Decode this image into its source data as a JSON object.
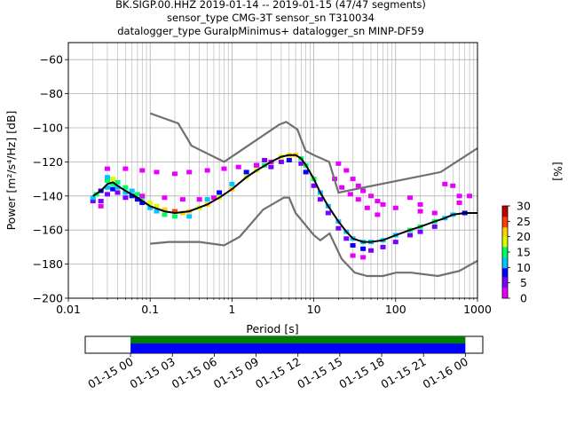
{
  "title_lines": [
    "BK.SIGP.00.HHZ   2019-01-14 -- 2019-01-15  (47/47 segments)",
    "sensor_type CMG-3T sensor_sn T310034",
    "datalogger_type GuralpMinimus+ datalogger_sn MINP-DF59"
  ],
  "chart_data": [
    {
      "type": "heatmap",
      "title": "BK.SIGP.00.HHZ   2019-01-14 -- 2019-01-15  (47/47 segments)",
      "xlabel": "Period [s]",
      "ylabel": "Power [m²/s⁴/Hz] [dB]",
      "xscale": "log",
      "xlim": [
        0.01,
        1000
      ],
      "ylim": [
        -200,
        -50
      ],
      "xticks": [
        0.01,
        0.1,
        1,
        10,
        100,
        1000
      ],
      "xtick_labels": [
        "0.01",
        "0.1",
        "1",
        "10",
        "100",
        "1000"
      ],
      "yticks": [
        -200,
        -180,
        -160,
        -140,
        -120,
        -100,
        -80,
        -60
      ],
      "ytick_labels": [
        "−200",
        "−180",
        "−160",
        "−140",
        "−120",
        "−100",
        "−80",
        "−60"
      ],
      "grid": true,
      "colormap": [
        "#ffffff",
        "#e800ff",
        "#7a00ff",
        "#0000ff",
        "#00c8ff",
        "#00ff64",
        "#d8ff00",
        "#ffd000",
        "#ff4000",
        "#c00000"
      ],
      "colorbar": {
        "label": "[%]",
        "range": [
          0,
          30
        ],
        "ticks": [
          0,
          5,
          10,
          15,
          20,
          25,
          30
        ],
        "tick_labels": [
          "0",
          "5",
          "10",
          "15",
          "20",
          "25",
          "30"
        ]
      },
      "mode_curve": {
        "name": "mode",
        "color": "#000000",
        "x": [
          0.02,
          0.025,
          0.03,
          0.035,
          0.04,
          0.05,
          0.07,
          0.1,
          0.15,
          0.2,
          0.3,
          0.5,
          0.7,
          1,
          1.5,
          2,
          3,
          4,
          5,
          6,
          7,
          8,
          10,
          12,
          15,
          20,
          25,
          30,
          40,
          50,
          70,
          100,
          150,
          200,
          300,
          400,
          500,
          700,
          1000
        ],
        "y": [
          -140,
          -137,
          -133,
          -132,
          -134,
          -137,
          -141,
          -146,
          -149,
          -150,
          -149,
          -145,
          -141,
          -136,
          -129,
          -125,
          -120,
          -117,
          -116,
          -116,
          -118,
          -122,
          -130,
          -138,
          -146,
          -155,
          -161,
          -165,
          -167,
          -167,
          -166,
          -163,
          -160,
          -158,
          -155,
          -153,
          -151,
          -150,
          -150
        ]
      },
      "nlnm": {
        "name": "NLNM",
        "color": "#707070",
        "x": [
          0.1,
          0.17,
          0.4,
          0.8,
          1.24,
          2.4,
          4.3,
          5,
          6,
          10,
          12,
          15.6,
          21.9,
          31.6,
          45,
          70,
          101,
          154,
          328,
          600,
          1000
        ],
        "y": [
          -168,
          -167,
          -167,
          -169,
          -164,
          -148,
          -141,
          -141,
          -150,
          -163,
          -166,
          -162,
          -177,
          -185,
          -187,
          -187,
          -185,
          -185,
          -187,
          -184,
          -178
        ]
      },
      "nhnm": {
        "name": "NHNM",
        "color": "#707070",
        "x": [
          0.1,
          0.22,
          0.32,
          0.8,
          3.8,
          4.6,
          6.3,
          7.9,
          10,
          15.4,
          20,
          354.8,
          1000
        ],
        "y": [
          -91.5,
          -97.4,
          -110.5,
          -120,
          -98,
          -96.5,
          -101,
          -113.5,
          -116,
          -120,
          -138,
          -126,
          -112
        ]
      },
      "density_points": [
        [
          0.02,
          -143,
          8
        ],
        [
          0.02,
          -141,
          12
        ],
        [
          0.022,
          -139,
          16
        ],
        [
          0.025,
          -137,
          10
        ],
        [
          0.025,
          -143,
          6
        ],
        [
          0.025,
          -146,
          4
        ],
        [
          0.03,
          -131,
          18
        ],
        [
          0.03,
          -129,
          12
        ],
        [
          0.03,
          -135,
          14
        ],
        [
          0.03,
          -139,
          8
        ],
        [
          0.035,
          -130,
          20
        ],
        [
          0.035,
          -133,
          16
        ],
        [
          0.035,
          -136,
          10
        ],
        [
          0.04,
          -132,
          18
        ],
        [
          0.04,
          -135,
          14
        ],
        [
          0.04,
          -138,
          8
        ],
        [
          0.05,
          -135,
          16
        ],
        [
          0.05,
          -138,
          12
        ],
        [
          0.05,
          -141,
          6
        ],
        [
          0.06,
          -137,
          14
        ],
        [
          0.06,
          -140,
          10
        ],
        [
          0.07,
          -139,
          16
        ],
        [
          0.07,
          -142,
          10
        ],
        [
          0.08,
          -141,
          16
        ],
        [
          0.08,
          -144,
          10
        ],
        [
          0.1,
          -144,
          20
        ],
        [
          0.1,
          -147,
          14
        ],
        [
          0.12,
          -146,
          20
        ],
        [
          0.12,
          -149,
          14
        ],
        [
          0.15,
          -148,
          24
        ],
        [
          0.15,
          -151,
          16
        ],
        [
          0.2,
          -149,
          26
        ],
        [
          0.2,
          -152,
          18
        ],
        [
          0.25,
          -150,
          24
        ],
        [
          0.3,
          -149,
          22
        ],
        [
          0.3,
          -152,
          14
        ],
        [
          0.4,
          -147,
          20
        ],
        [
          0.5,
          -145,
          22
        ],
        [
          0.5,
          -142,
          12
        ],
        [
          0.7,
          -141,
          20
        ],
        [
          0.7,
          -138,
          10
        ],
        [
          1,
          -136,
          22
        ],
        [
          1,
          -133,
          12
        ],
        [
          1.5,
          -129,
          20
        ],
        [
          1.5,
          -126,
          10
        ],
        [
          2,
          -125,
          20
        ],
        [
          2,
          -122,
          10
        ],
        [
          2.5,
          -122,
          16
        ],
        [
          2.5,
          -119,
          8
        ],
        [
          3,
          -120,
          18
        ],
        [
          3,
          -123,
          8
        ],
        [
          4,
          -117,
          20
        ],
        [
          4,
          -120,
          8
        ],
        [
          5,
          -116,
          24
        ],
        [
          5,
          -119,
          10
        ],
        [
          6,
          -116,
          22
        ],
        [
          7,
          -118,
          18
        ],
        [
          7,
          -121,
          8
        ],
        [
          8,
          -122,
          16
        ],
        [
          8,
          -126,
          10
        ],
        [
          10,
          -130,
          16
        ],
        [
          10,
          -134,
          8
        ],
        [
          12,
          -138,
          14
        ],
        [
          12,
          -142,
          8
        ],
        [
          15,
          -146,
          12
        ],
        [
          15,
          -150,
          6
        ],
        [
          20,
          -155,
          12
        ],
        [
          20,
          -159,
          8
        ],
        [
          25,
          -161,
          12
        ],
        [
          25,
          -165,
          8
        ],
        [
          30,
          -165,
          14
        ],
        [
          30,
          -169,
          10
        ],
        [
          30,
          -175,
          4
        ],
        [
          40,
          -167,
          14
        ],
        [
          40,
          -171,
          10
        ],
        [
          40,
          -176,
          4
        ],
        [
          50,
          -167,
          14
        ],
        [
          50,
          -172,
          8
        ],
        [
          70,
          -166,
          14
        ],
        [
          70,
          -170,
          8
        ],
        [
          100,
          -163,
          14
        ],
        [
          100,
          -167,
          8
        ],
        [
          150,
          -160,
          16
        ],
        [
          150,
          -163,
          8
        ],
        [
          200,
          -158,
          16
        ],
        [
          200,
          -161,
          8
        ],
        [
          300,
          -155,
          16
        ],
        [
          300,
          -158,
          8
        ],
        [
          400,
          -153,
          14
        ],
        [
          500,
          -151,
          14
        ],
        [
          700,
          -150,
          10
        ],
        [
          0.03,
          -124,
          2
        ],
        [
          0.05,
          -124,
          2
        ],
        [
          0.08,
          -125,
          2
        ],
        [
          0.12,
          -126,
          2
        ],
        [
          0.2,
          -127,
          2
        ],
        [
          0.3,
          -126,
          2
        ],
        [
          0.5,
          -125,
          2
        ],
        [
          0.8,
          -124,
          2
        ],
        [
          1.2,
          -123,
          2
        ],
        [
          2,
          -122,
          2
        ],
        [
          3,
          -120,
          2
        ],
        [
          0.08,
          -140,
          2
        ],
        [
          0.15,
          -141,
          2
        ],
        [
          0.25,
          -142,
          2
        ],
        [
          0.4,
          -142,
          2
        ],
        [
          0.6,
          -141,
          2
        ],
        [
          20,
          -121,
          2
        ],
        [
          25,
          -125,
          2
        ],
        [
          30,
          -130,
          2
        ],
        [
          35,
          -134,
          2
        ],
        [
          40,
          -137,
          2
        ],
        [
          50,
          -140,
          2
        ],
        [
          60,
          -143,
          2
        ],
        [
          70,
          -145,
          2
        ],
        [
          100,
          -147,
          2
        ],
        [
          200,
          -149,
          2
        ],
        [
          300,
          -150,
          2
        ],
        [
          600,
          -140,
          2
        ],
        [
          600,
          -144,
          2
        ],
        [
          800,
          -140,
          2
        ],
        [
          200,
          -145,
          2
        ],
        [
          150,
          -141,
          2
        ],
        [
          400,
          -133,
          2
        ],
        [
          500,
          -134,
          2
        ],
        [
          18,
          -130,
          2
        ],
        [
          22,
          -135,
          2
        ],
        [
          28,
          -139,
          2
        ],
        [
          35,
          -142,
          2
        ],
        [
          45,
          -147,
          2
        ],
        [
          60,
          -151,
          2
        ]
      ]
    },
    {
      "type": "bar",
      "title": "",
      "xlabel": "",
      "ylabel": "",
      "x_type": "time",
      "xlim": [
        "2019-01-14 20:45",
        "2019-01-16 01:15"
      ],
      "xticks": [
        "01-15 00",
        "01-15 03",
        "01-15 06",
        "01-15 09",
        "01-15 12",
        "01-15 15",
        "01-15 18",
        "01-15 21",
        "01-16 00"
      ],
      "series": [
        {
          "start": "2019-01-15 00:00",
          "end": "2019-01-16 00:00",
          "color": "#008000"
        },
        {
          "start": "2019-01-15 00:00",
          "end": "2019-01-16 00:00",
          "color": "#0000ff"
        }
      ]
    }
  ]
}
